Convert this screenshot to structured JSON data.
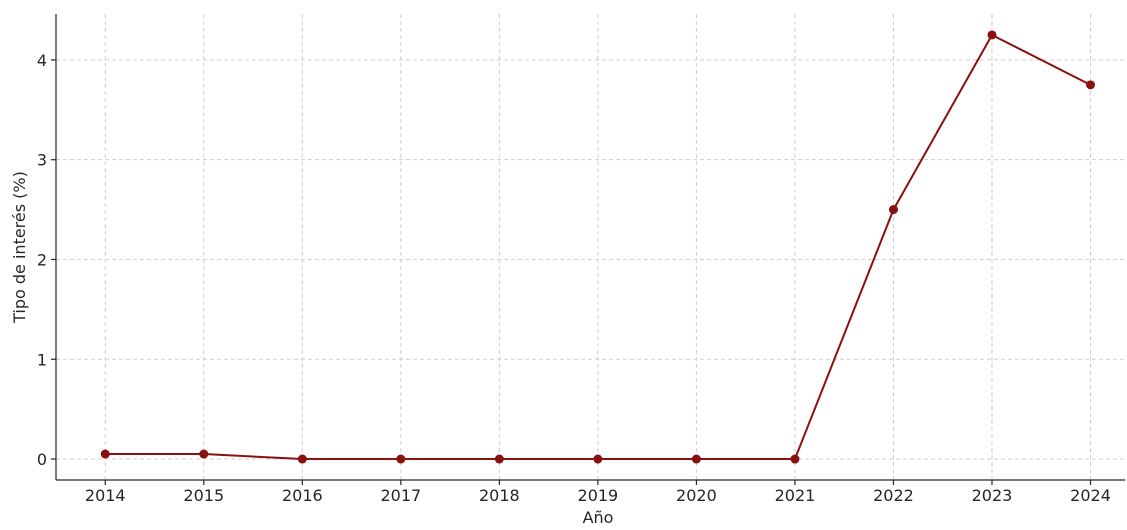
{
  "chart_data": {
    "type": "line",
    "title": "",
    "xlabel": "Año",
    "ylabel": "Tipo de interés (%)",
    "x": [
      2014,
      2015,
      2016,
      2017,
      2018,
      2019,
      2020,
      2021,
      2022,
      2023,
      2024
    ],
    "series": [
      {
        "values": [
          0.05,
          0.05,
          0.0,
          0.0,
          0.0,
          0.0,
          0.0,
          0.0,
          2.5,
          4.25,
          3.75
        ],
        "color": "#8b1010"
      }
    ],
    "yticks": [
      0,
      1,
      2,
      3,
      4
    ],
    "ylim": [
      -0.21,
      4.46
    ],
    "xlim": [
      2013.5,
      2024.35
    ],
    "grid": true,
    "legend": "none"
  }
}
